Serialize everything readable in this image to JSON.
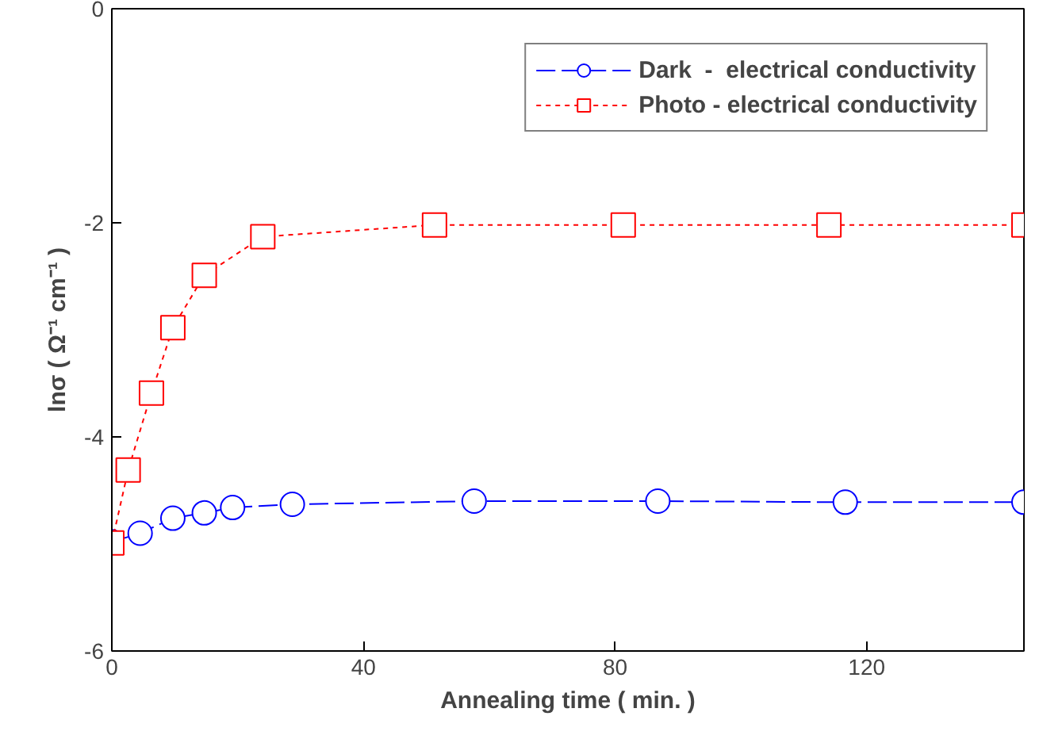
{
  "chart_data": {
    "type": "line",
    "xlabel": "Annealing time ( min. )",
    "ylabel": "lnσ ( Ω⁻¹ cm⁻¹ )",
    "xlim": [
      0,
      145
    ],
    "xticks": [
      0,
      40,
      80,
      120
    ],
    "ylim": [
      -6,
      0
    ],
    "yticks": [
      -6,
      -4,
      -2,
      0
    ],
    "grid": false,
    "legend": "top right",
    "series": [
      {
        "name": "Dark  -  electrical conductivity",
        "color": "#0000ff",
        "marker": "circle",
        "line_style": "dashed",
        "x": [
          0,
          4.5,
          9.7,
          14.7,
          19.2,
          28.7,
          57.6,
          86.8,
          116.6,
          145
        ],
        "values": [
          -4.98,
          -4.9,
          -4.76,
          -4.71,
          -4.66,
          -4.63,
          -4.6,
          -4.6,
          -4.61,
          -4.61
        ]
      },
      {
        "name": "Photo - electrical conductivity",
        "color": "#ff0000",
        "marker": "square",
        "line_style": "dotted",
        "x": [
          0,
          2.6,
          6.3,
          9.7,
          14.7,
          24,
          51.3,
          81.3,
          114,
          145
        ],
        "values": [
          -4.99,
          -4.31,
          -3.59,
          -2.98,
          -2.49,
          -2.13,
          -2.02,
          -2.02,
          -2.02,
          -2.02
        ]
      }
    ]
  }
}
